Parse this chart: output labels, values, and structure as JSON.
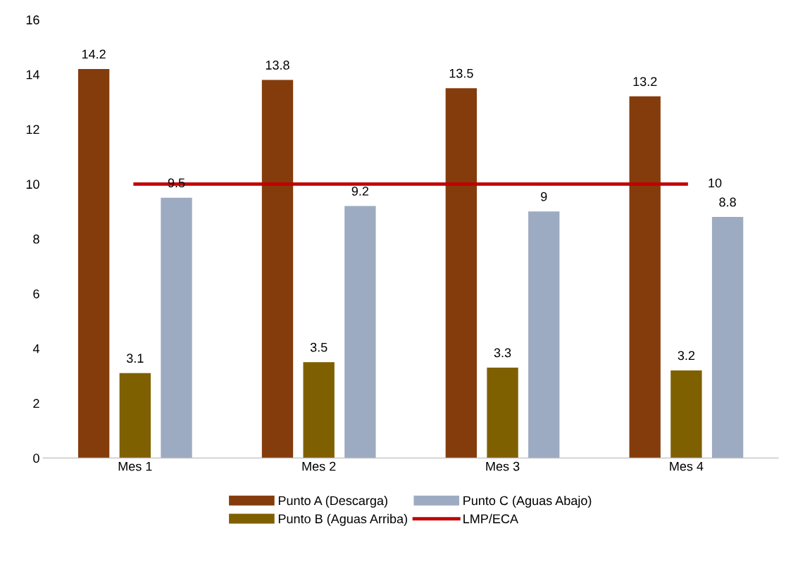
{
  "chart_data": {
    "type": "bar",
    "categories": [
      "Mes 1",
      "Mes 2",
      "Mes 3",
      "Mes 4"
    ],
    "series": [
      {
        "name": "Punto A (Descarga)",
        "color": "#843c0c",
        "values": [
          14.2,
          13.8,
          13.5,
          13.2
        ],
        "value_labels": [
          "14.2",
          "13.8",
          "13.5",
          "13.2"
        ]
      },
      {
        "name": "Punto B (Aguas Arriba)",
        "color": "#7f6000",
        "values": [
          3.1,
          3.5,
          3.3,
          3.2
        ],
        "value_labels": [
          "3.1",
          "3.5",
          "3.3",
          "3.2"
        ]
      },
      {
        "name": "Punto C (Aguas Abajo)",
        "color": "#9dabc2",
        "values": [
          9.5,
          9.2,
          9,
          8.8
        ],
        "value_labels": [
          "9.5",
          "9.2",
          "9",
          "8.8"
        ]
      },
      {
        "name": "LMP/ECA",
        "type": "line",
        "color": "#c00000",
        "values": [
          10,
          10,
          10,
          10
        ],
        "value_labels": [
          null,
          null,
          null,
          "10"
        ]
      }
    ],
    "ylim": [
      0,
      16
    ],
    "yticks": [
      0,
      2,
      4,
      6,
      8,
      10,
      12,
      14,
      16
    ],
    "grid": false,
    "legend": "bottom",
    "marker": "none",
    "line_style": "solid"
  }
}
